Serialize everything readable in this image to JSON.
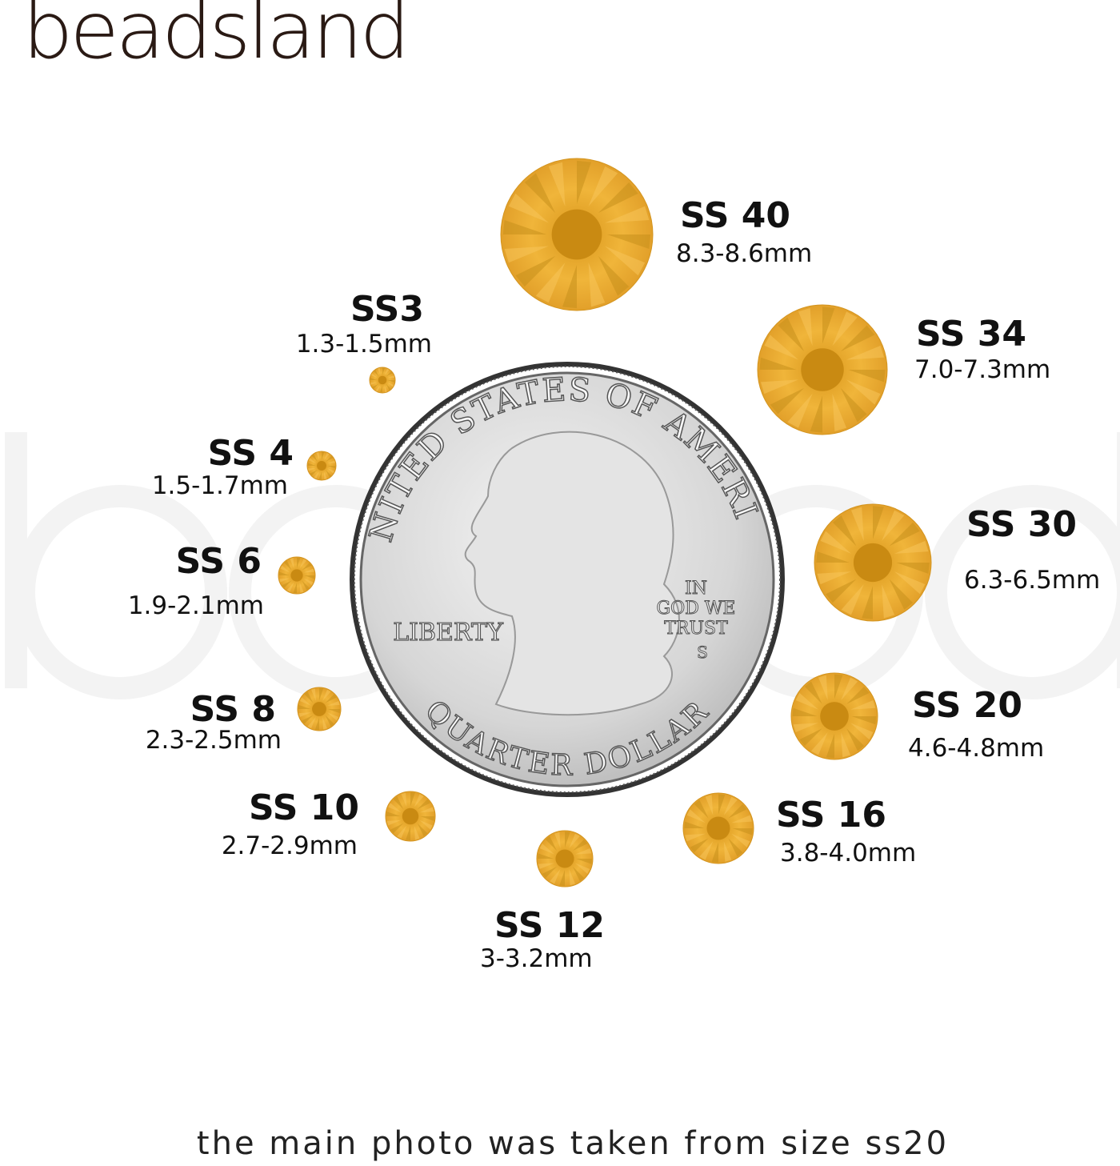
{
  "brand": "beadsland",
  "footer": "the main photo was taken from size ss20",
  "colors": {
    "gem": "#e8a52a",
    "gem_dark": "#c98a12",
    "coin": "#d9d9d9"
  },
  "coin": {
    "top_text": "UNITED STATES OF AMERICA",
    "bottom_text": "QUARTER DOLLAR",
    "left_text": "LIBERTY",
    "motto": [
      "IN",
      "GOD WE",
      "TRUST"
    ],
    "mint_mark": "S"
  },
  "sizes": [
    {
      "name": "SS 40",
      "range": "8.3-8.6mm"
    },
    {
      "name": "SS 34",
      "range": "7.0-7.3mm"
    },
    {
      "name": "SS 30",
      "range": "6.3-6.5mm"
    },
    {
      "name": "SS 20",
      "range": "4.6-4.8mm"
    },
    {
      "name": "SS 16",
      "range": "3.8-4.0mm"
    },
    {
      "name": "SS 12",
      "range": "3-3.2mm"
    },
    {
      "name": "SS 10",
      "range": "2.7-2.9mm"
    },
    {
      "name": "SS 8",
      "range": "2.3-2.5mm"
    },
    {
      "name": "SS 6",
      "range": "1.9-2.1mm"
    },
    {
      "name": "SS 4",
      "range": "1.5-1.7mm"
    },
    {
      "name": "SS3",
      "range": "1.3-1.5mm"
    }
  ]
}
